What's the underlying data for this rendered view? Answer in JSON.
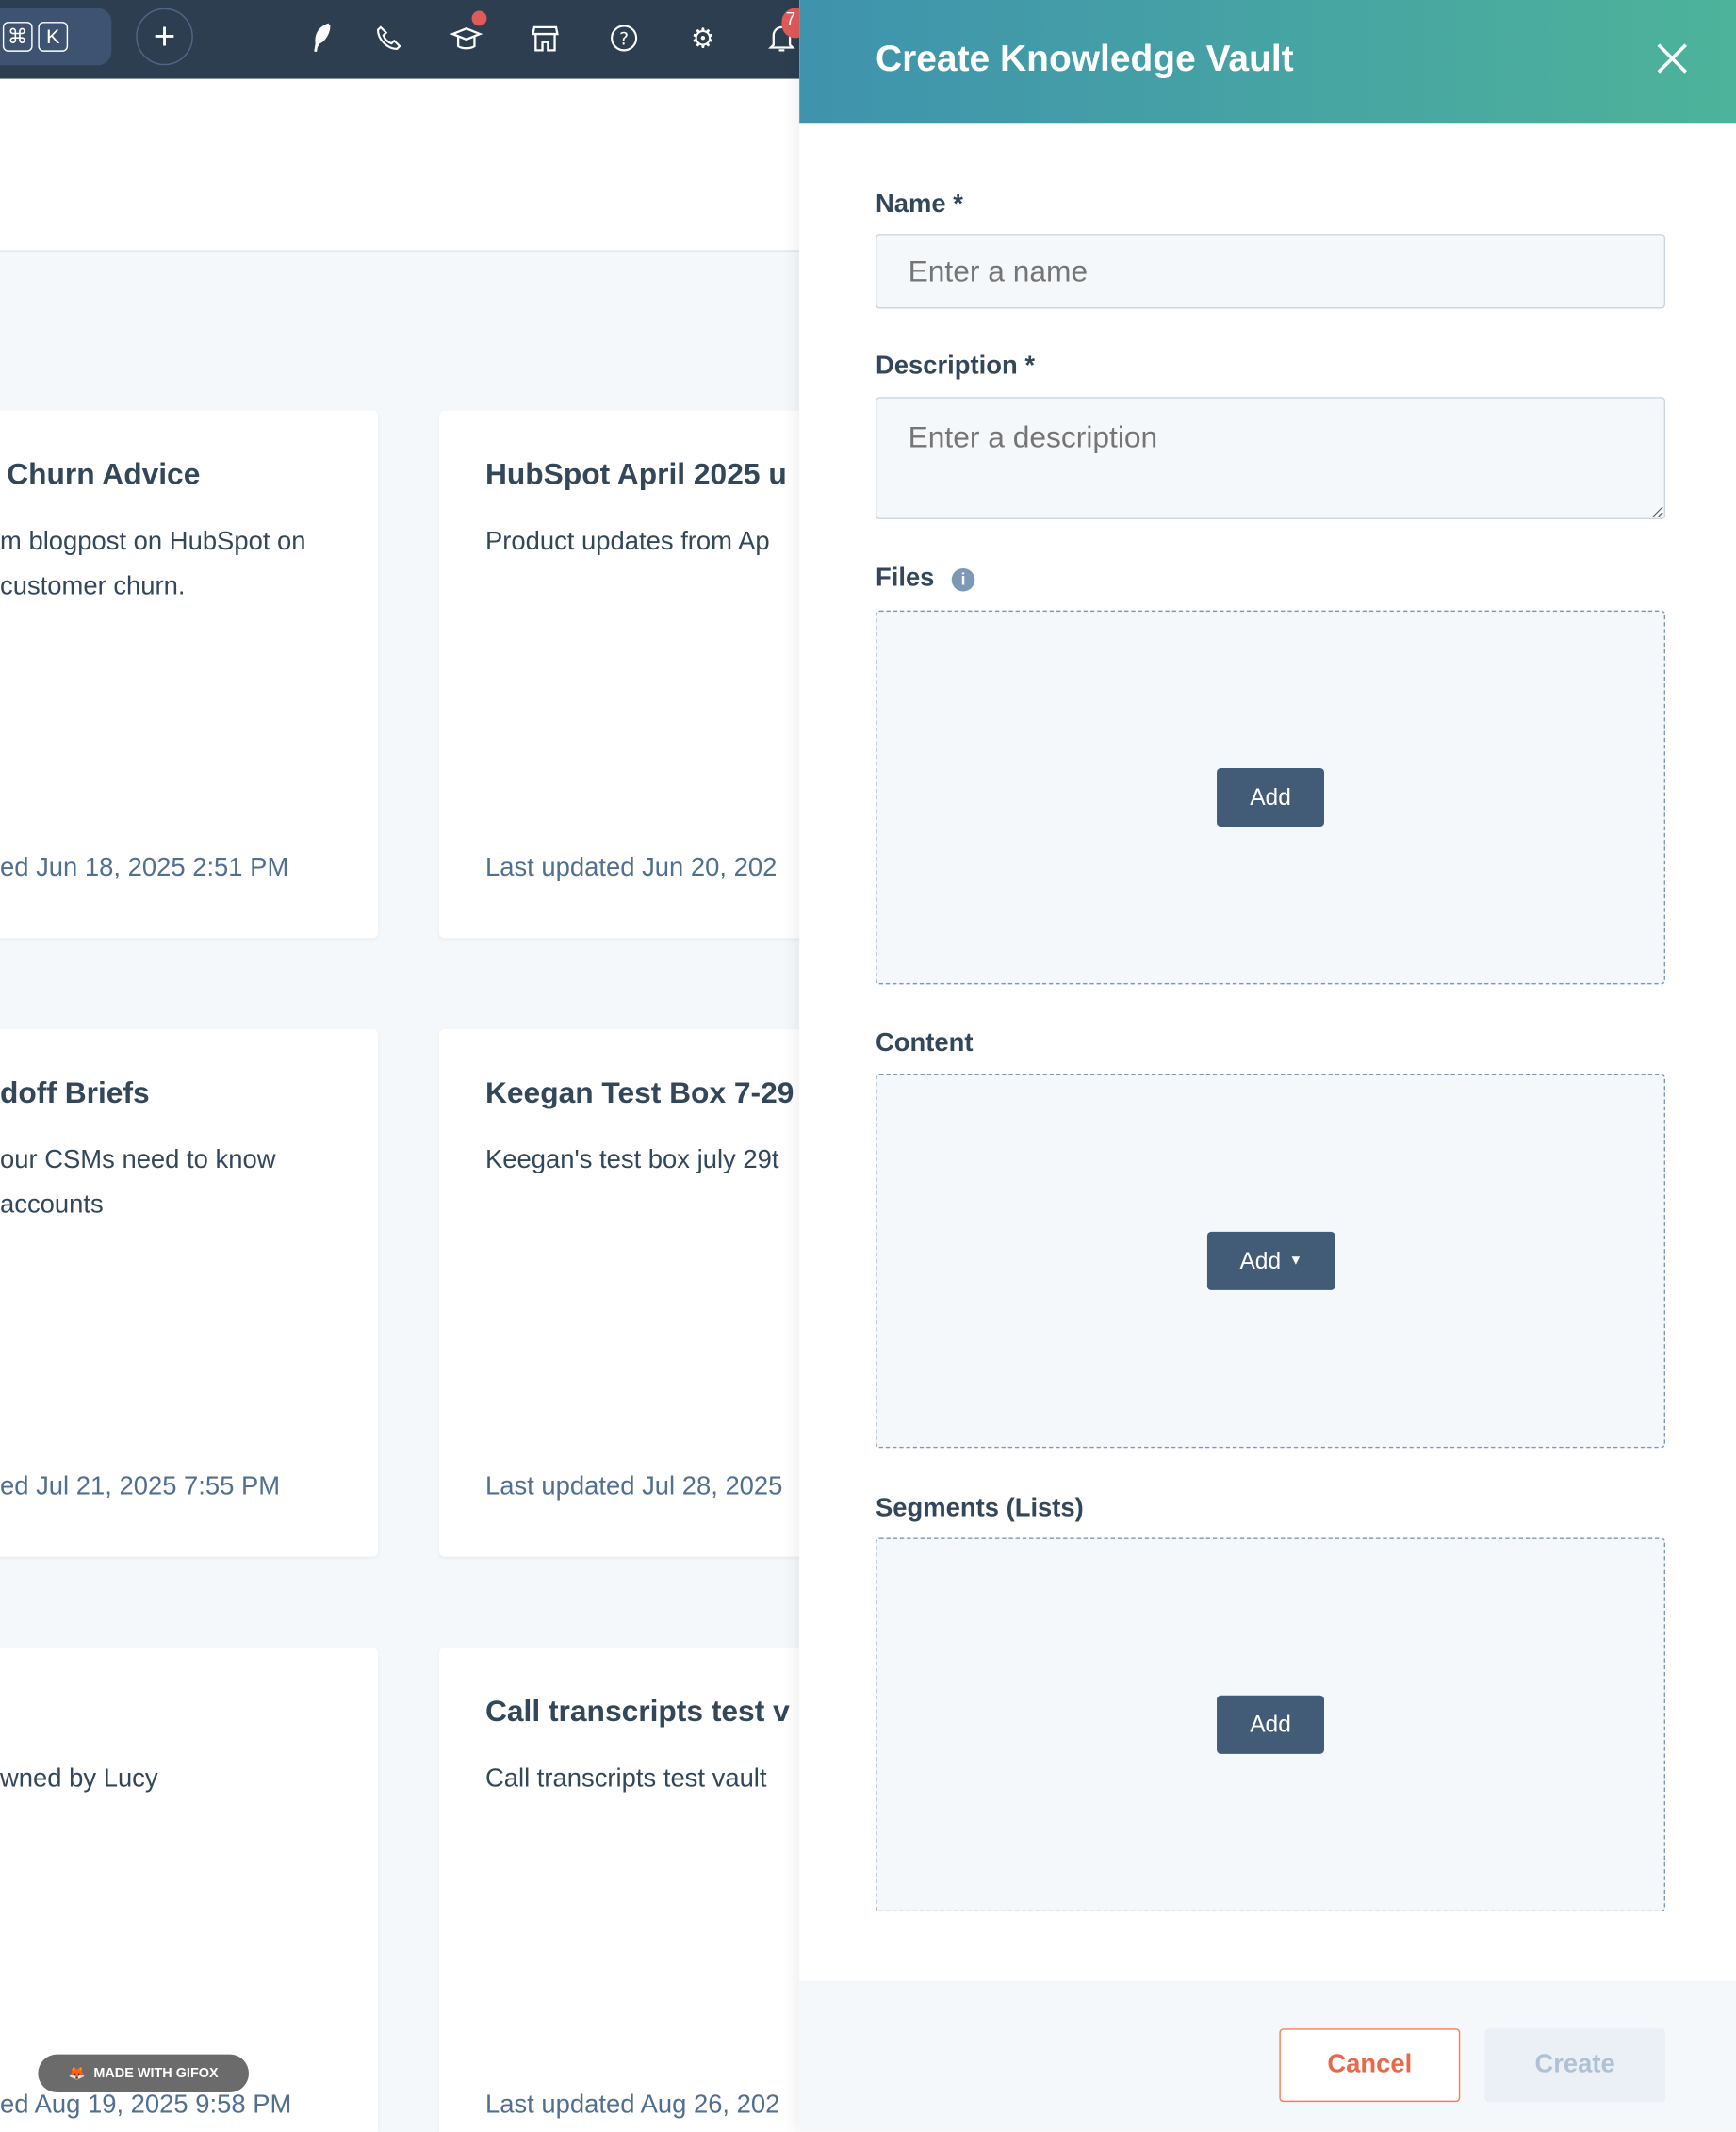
{
  "topbar": {
    "shortcut_keys": [
      "⌘",
      "K"
    ],
    "icons": [
      "command-key-icon",
      "plus-icon",
      "feather-icon",
      "phone-icon",
      "academy-icon",
      "marketplace-icon",
      "help-icon",
      "settings-icon",
      "bell-icon"
    ],
    "notification_count": "7",
    "badge_color": "#e05a5a"
  },
  "cards": [
    {
      "title": "Churn Advice",
      "desc": [
        "m blogpost on HubSpot on",
        " customer churn."
      ],
      "updated": "ed Jun 18, 2025 2:51 PM"
    },
    {
      "title": "HubSpot April 2025 u",
      "desc": [
        "Product updates from Ap"
      ],
      "updated": "Last updated Jun 20, 202"
    },
    {
      "title": "doff Briefs",
      "desc": [
        "our CSMs need to know",
        " accounts"
      ],
      "updated": "ed Jul 21, 2025 7:55 PM"
    },
    {
      "title": "Keegan Test Box 7-29",
      "desc": [
        "Keegan's test box july 29t"
      ],
      "updated": "Last updated Jul 28, 2025"
    },
    {
      "title": "",
      "desc": [
        "wned by Lucy"
      ],
      "updated": "ed Aug 19, 2025 9:58 PM"
    },
    {
      "title": "Call transcripts test v",
      "desc": [
        "Call transcripts test vault"
      ],
      "updated": "Last updated Aug 26, 202"
    }
  ],
  "panel": {
    "title": "Create Knowledge Vault",
    "name_label": "Name *",
    "name_placeholder": "Enter a name",
    "name_value": "",
    "description_label": "Description *",
    "description_placeholder": "Enter a description",
    "description_value": "",
    "files_label": "Files",
    "files_add": "Add",
    "content_label": "Content",
    "content_add": "Add",
    "segments_label": "Segments (Lists)",
    "segments_add": "Add",
    "cancel": "Cancel",
    "create": "Create",
    "accent": "#ff7a59"
  },
  "watermark": "MADE WITH GIFOX"
}
